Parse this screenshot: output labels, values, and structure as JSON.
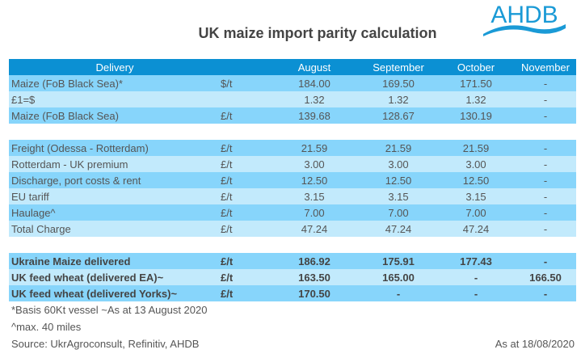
{
  "title": "UK maize import parity calculation",
  "logo_text": "AHDB",
  "header": {
    "delivery": "Delivery",
    "unit": "",
    "months": [
      "August",
      "September",
      "October",
      "November"
    ]
  },
  "section1": [
    {
      "label": "Maize (FoB Black Sea)*",
      "unit": "$/t",
      "values": [
        "184.00",
        "169.50",
        "171.50",
        "-"
      ]
    },
    {
      "label": "£1=$",
      "unit": "",
      "values": [
        "1.32",
        "1.32",
        "1.32",
        "-"
      ]
    },
    {
      "label": "Maize (FoB Black Sea)",
      "unit": "£/t",
      "values": [
        "139.68",
        "128.67",
        "130.19",
        "-"
      ]
    }
  ],
  "section2": [
    {
      "label": "Freight (Odessa - Rotterdam)",
      "unit": "£/t",
      "values": [
        "21.59",
        "21.59",
        "21.59",
        "-"
      ]
    },
    {
      "label": "Rotterdam - UK premium",
      "unit": "£/t",
      "values": [
        "3.00",
        "3.00",
        "3.00",
        "-"
      ]
    },
    {
      "label": "Discharge, port costs & rent",
      "unit": "£/t",
      "values": [
        "12.50",
        "12.50",
        "12.50",
        "-"
      ]
    },
    {
      "label": "EU tariff",
      "unit": "£/t",
      "values": [
        "3.15",
        "3.15",
        "3.15",
        "-"
      ]
    },
    {
      "label": "Haulage^",
      "unit": "£/t",
      "values": [
        "7.00",
        "7.00",
        "7.00",
        "-"
      ]
    },
    {
      "label": "Total Charge",
      "unit": "£/t",
      "values": [
        "47.24",
        "47.24",
        "47.24",
        "-"
      ]
    }
  ],
  "section3": [
    {
      "label": "Ukraine Maize delivered",
      "unit": "£/t",
      "values": [
        "186.92",
        "175.91",
        "177.43",
        "-"
      ]
    },
    {
      "label": "UK feed wheat (delivered EA)~",
      "unit": "£/t",
      "values": [
        "163.50",
        "165.00",
        "-",
        "166.50"
      ]
    },
    {
      "label": "UK feed wheat (delivered Yorks)~",
      "unit": "£/t",
      "values": [
        "170.50",
        "-",
        "-",
        "-"
      ]
    }
  ],
  "notes": {
    "line1": "*Basis 60Kt vessel    ~As at 13 August 2020",
    "line2": "^max. 40 miles",
    "source": "Source: UkrAgroconsult, Refinitiv, AHDB",
    "as_at": "As at 18/08/2020"
  },
  "colors": {
    "header": "#0b90d3",
    "row_dark": "#87d5fb",
    "row_light": "#c2eafc",
    "logo": "#1a9ad6"
  }
}
